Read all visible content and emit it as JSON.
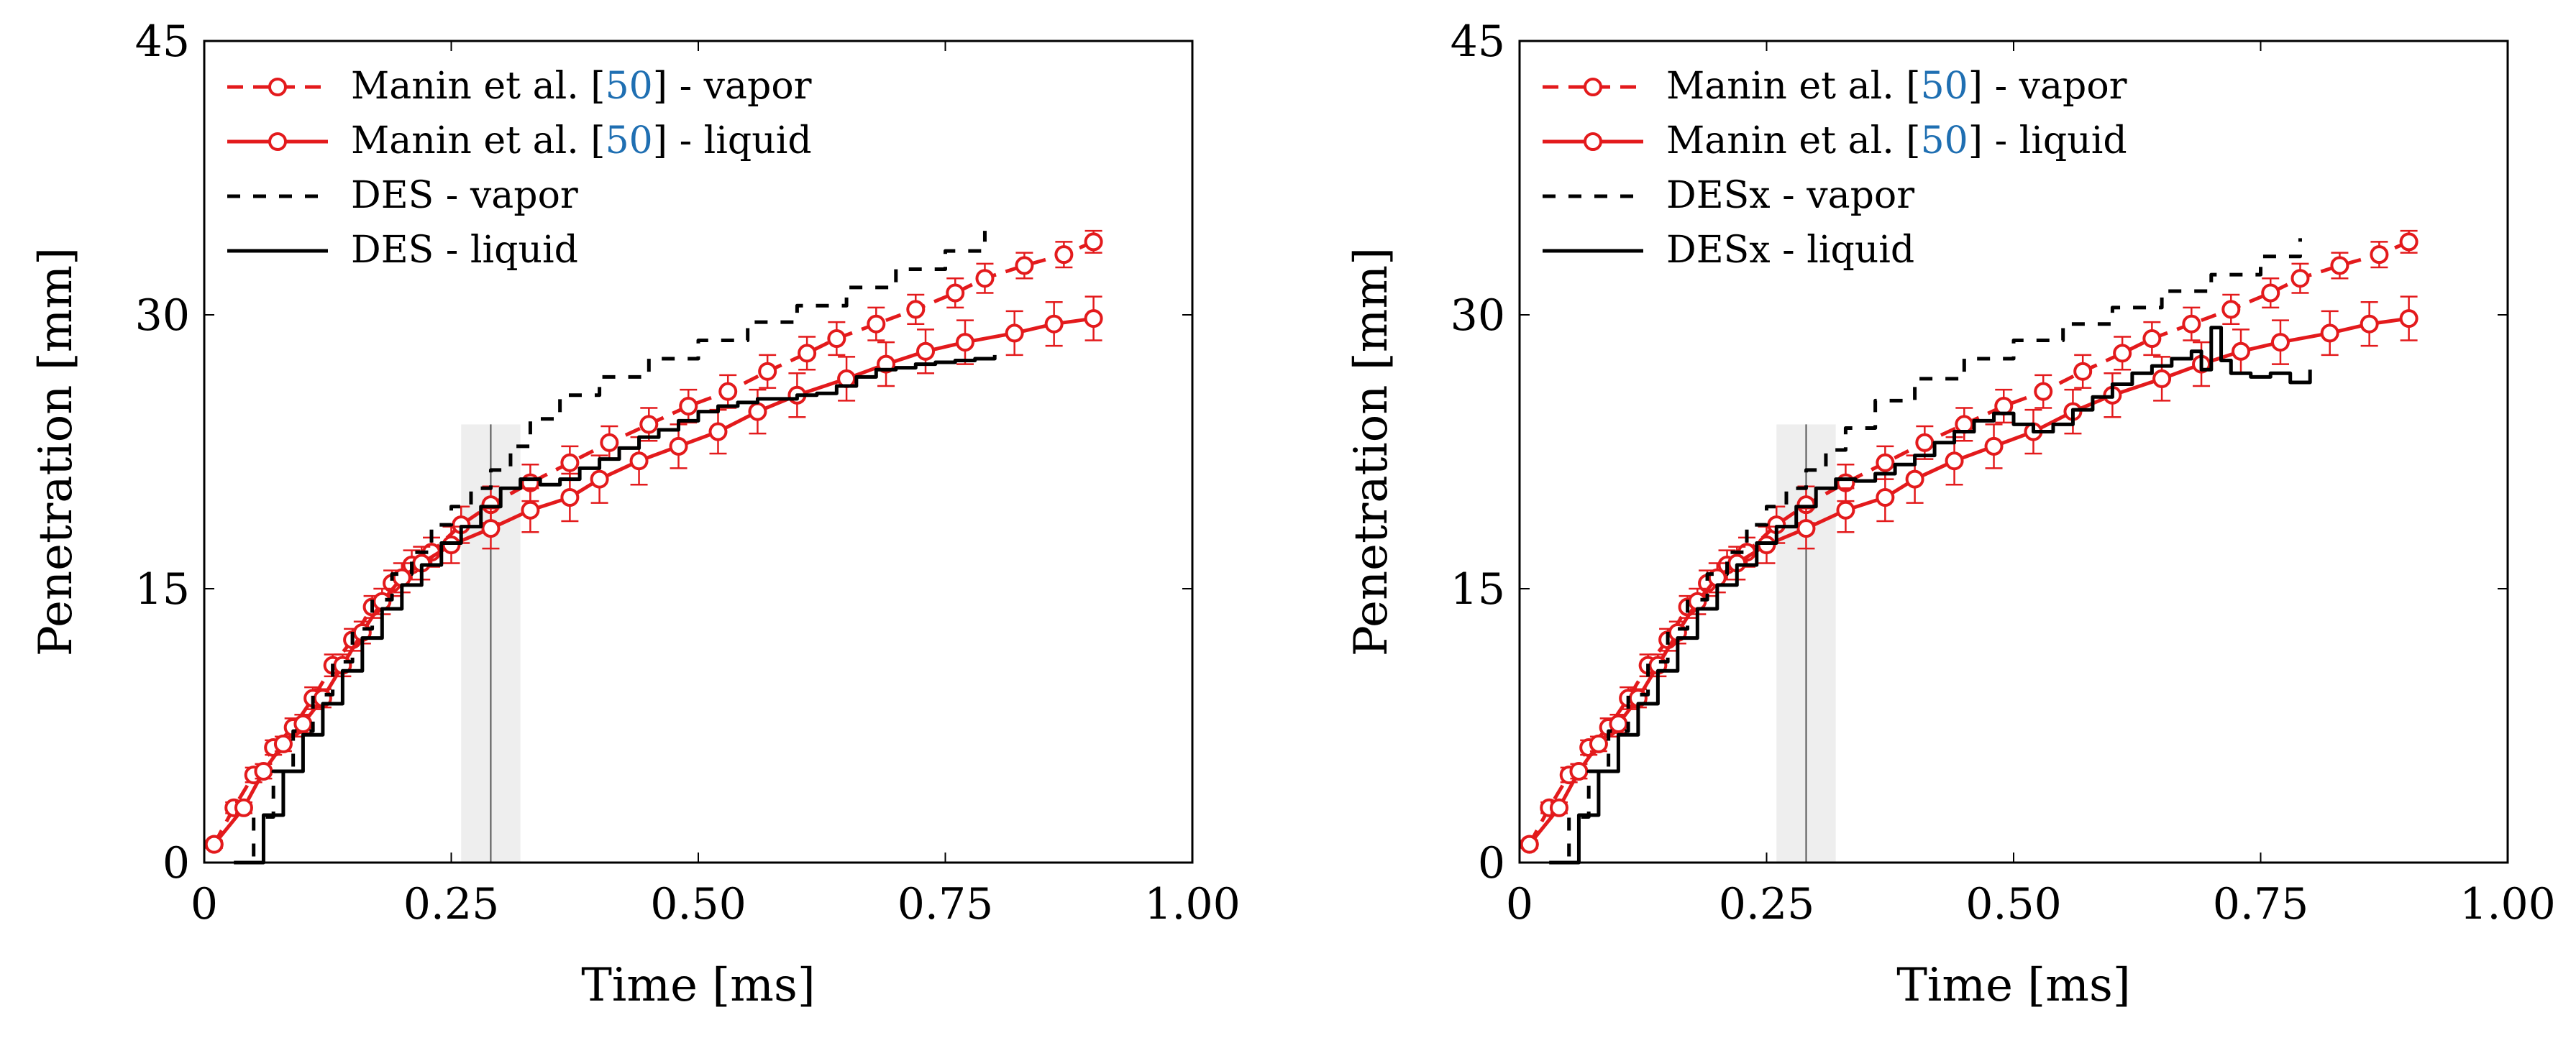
{
  "chart_data": [
    {
      "type": "line",
      "panel": "left",
      "xlabel": "Time [ms]",
      "ylabel": "Penetration [mm]",
      "xlim": [
        0,
        1.0
      ],
      "ylim": [
        0,
        45
      ],
      "xticks": [
        "0",
        "0.25",
        "0.50",
        "0.75",
        "1.00"
      ],
      "xtick_values": [
        0,
        0.25,
        0.5,
        0.75,
        1.0
      ],
      "yticks": [
        "0",
        "15",
        "30",
        "45"
      ],
      "ytick_values": [
        0,
        15,
        30,
        45
      ],
      "legend_position": "top-left",
      "shaded_band": {
        "x0": 0.26,
        "x1": 0.32,
        "y_top": 24,
        "line_x": 0.29
      },
      "series": [
        {
          "name": "Manin et al. [50] - vapor",
          "legend_prefix": "Manin et al. [",
          "legend_cite": "50",
          "legend_suffix": "] - vapor",
          "color": "#e31a1c",
          "dash": "dashed",
          "marker": "circle",
          "error_bars": true,
          "x": [
            0.01,
            0.03,
            0.05,
            0.07,
            0.09,
            0.11,
            0.13,
            0.15,
            0.17,
            0.19,
            0.21,
            0.23,
            0.26,
            0.29,
            0.33,
            0.37,
            0.41,
            0.45,
            0.49,
            0.53,
            0.57,
            0.61,
            0.64,
            0.68,
            0.72,
            0.76,
            0.79,
            0.83,
            0.87,
            0.9
          ],
          "y": [
            1.0,
            3.0,
            4.8,
            6.3,
            7.4,
            9.0,
            10.8,
            12.2,
            14.0,
            15.3,
            16.3,
            17.0,
            18.5,
            19.6,
            20.8,
            21.9,
            23.0,
            24.0,
            25.0,
            25.8,
            26.9,
            27.9,
            28.7,
            29.5,
            30.3,
            31.2,
            32.0,
            32.7,
            33.3,
            34.0
          ],
          "err": [
            0.2,
            0.3,
            0.4,
            0.4,
            0.5,
            0.6,
            0.6,
            0.6,
            0.6,
            0.7,
            0.8,
            0.8,
            1.0,
            1.0,
            1.0,
            0.9,
            0.9,
            0.9,
            0.9,
            0.9,
            0.9,
            0.9,
            0.9,
            0.9,
            0.8,
            0.8,
            0.8,
            0.7,
            0.7,
            0.6
          ]
        },
        {
          "name": "Manin et al. [50] - liquid",
          "legend_prefix": "Manin et al. [",
          "legend_cite": "50",
          "legend_suffix": "] - liquid",
          "color": "#e31a1c",
          "dash": "solid",
          "marker": "circle",
          "error_bars": true,
          "x": [
            0.01,
            0.04,
            0.06,
            0.08,
            0.1,
            0.12,
            0.14,
            0.16,
            0.18,
            0.2,
            0.22,
            0.25,
            0.29,
            0.33,
            0.37,
            0.4,
            0.44,
            0.48,
            0.52,
            0.56,
            0.6,
            0.65,
            0.69,
            0.73,
            0.77,
            0.82,
            0.86,
            0.9
          ],
          "y": [
            1.0,
            3.0,
            5.0,
            6.5,
            7.6,
            9.0,
            10.8,
            12.6,
            14.3,
            15.6,
            16.4,
            17.4,
            18.3,
            19.3,
            20.0,
            21.0,
            22.0,
            22.8,
            23.6,
            24.7,
            25.6,
            26.5,
            27.3,
            28.0,
            28.5,
            29.0,
            29.5,
            29.8
          ],
          "err": [
            0.2,
            0.3,
            0.4,
            0.4,
            0.5,
            0.5,
            0.6,
            0.6,
            0.7,
            0.8,
            0.9,
            1.0,
            1.1,
            1.2,
            1.3,
            1.3,
            1.3,
            1.2,
            1.2,
            1.2,
            1.2,
            1.2,
            1.2,
            1.2,
            1.2,
            1.2,
            1.2,
            1.2
          ]
        },
        {
          "name": "DES - vapor",
          "color": "#000000",
          "dash": "dashed",
          "marker": "none",
          "x": [
            0.03,
            0.05,
            0.07,
            0.09,
            0.11,
            0.13,
            0.15,
            0.17,
            0.19,
            0.21,
            0.23,
            0.25,
            0.27,
            0.29,
            0.31,
            0.33,
            0.36,
            0.4,
            0.45,
            0.5,
            0.55,
            0.6,
            0.65,
            0.7,
            0.75,
            0.79
          ],
          "y": [
            0,
            2.5,
            5.0,
            7.2,
            9.2,
            11.0,
            12.8,
            14.4,
            15.8,
            17.0,
            18.5,
            19.5,
            20.5,
            21.5,
            22.8,
            24.3,
            25.6,
            26.6,
            27.6,
            28.6,
            29.6,
            30.5,
            31.5,
            32.5,
            33.5,
            34.6
          ]
        },
        {
          "name": "DES - liquid",
          "color": "#000000",
          "dash": "solid",
          "marker": "none",
          "x": [
            0.04,
            0.06,
            0.08,
            0.1,
            0.12,
            0.14,
            0.16,
            0.18,
            0.2,
            0.22,
            0.24,
            0.26,
            0.28,
            0.3,
            0.32,
            0.34,
            0.36,
            0.38,
            0.4,
            0.42,
            0.44,
            0.46,
            0.48,
            0.5,
            0.52,
            0.54,
            0.56,
            0.58,
            0.6,
            0.62,
            0.64,
            0.66,
            0.68,
            0.7,
            0.72,
            0.74,
            0.76,
            0.78,
            0.8
          ],
          "y": [
            0,
            2.6,
            5.0,
            7.0,
            8.7,
            10.5,
            12.3,
            13.9,
            15.2,
            16.3,
            17.5,
            18.4,
            19.5,
            20.5,
            21.0,
            20.7,
            21.0,
            21.6,
            22.1,
            22.7,
            23.3,
            23.7,
            24.2,
            24.7,
            25.0,
            25.2,
            25.4,
            25.4,
            25.6,
            25.7,
            26.1,
            26.6,
            27.0,
            27.1,
            27.3,
            27.4,
            27.5,
            27.6,
            27.8
          ]
        }
      ]
    },
    {
      "type": "line",
      "panel": "right",
      "xlabel": "Time [ms]",
      "ylabel": "Penetration [mm]",
      "xlim": [
        0,
        1.0
      ],
      "ylim": [
        0,
        45
      ],
      "xticks": [
        "0",
        "0.25",
        "0.50",
        "0.75",
        "1.00"
      ],
      "xtick_values": [
        0,
        0.25,
        0.5,
        0.75,
        1.0
      ],
      "yticks": [
        "0",
        "15",
        "30",
        "45"
      ],
      "ytick_values": [
        0,
        15,
        30,
        45
      ],
      "legend_position": "top-left",
      "shaded_band": {
        "x0": 0.26,
        "x1": 0.32,
        "y_top": 24,
        "line_x": 0.29
      },
      "series": [
        {
          "name": "Manin et al. [50] - vapor",
          "legend_prefix": "Manin et al. [",
          "legend_cite": "50",
          "legend_suffix": "] - vapor",
          "color": "#e31a1c",
          "dash": "dashed",
          "marker": "circle",
          "error_bars": true,
          "x": [
            0.01,
            0.03,
            0.05,
            0.07,
            0.09,
            0.11,
            0.13,
            0.15,
            0.17,
            0.19,
            0.21,
            0.23,
            0.26,
            0.29,
            0.33,
            0.37,
            0.41,
            0.45,
            0.49,
            0.53,
            0.57,
            0.61,
            0.64,
            0.68,
            0.72,
            0.76,
            0.79,
            0.83,
            0.87,
            0.9
          ],
          "y": [
            1.0,
            3.0,
            4.8,
            6.3,
            7.4,
            9.0,
            10.8,
            12.2,
            14.0,
            15.3,
            16.3,
            17.0,
            18.5,
            19.6,
            20.8,
            21.9,
            23.0,
            24.0,
            25.0,
            25.8,
            26.9,
            27.9,
            28.7,
            29.5,
            30.3,
            31.2,
            32.0,
            32.7,
            33.3,
            34.0
          ],
          "err": [
            0.2,
            0.3,
            0.4,
            0.4,
            0.5,
            0.6,
            0.6,
            0.6,
            0.6,
            0.7,
            0.8,
            0.8,
            1.0,
            1.0,
            1.0,
            0.9,
            0.9,
            0.9,
            0.9,
            0.9,
            0.9,
            0.9,
            0.9,
            0.9,
            0.8,
            0.8,
            0.8,
            0.7,
            0.7,
            0.6
          ]
        },
        {
          "name": "Manin et al. [50] - liquid",
          "legend_prefix": "Manin et al. [",
          "legend_cite": "50",
          "legend_suffix": "] - liquid",
          "color": "#e31a1c",
          "dash": "solid",
          "marker": "circle",
          "error_bars": true,
          "x": [
            0.01,
            0.04,
            0.06,
            0.08,
            0.1,
            0.12,
            0.14,
            0.16,
            0.18,
            0.2,
            0.22,
            0.25,
            0.29,
            0.33,
            0.37,
            0.4,
            0.44,
            0.48,
            0.52,
            0.56,
            0.6,
            0.65,
            0.69,
            0.73,
            0.77,
            0.82,
            0.86,
            0.9
          ],
          "y": [
            1.0,
            3.0,
            5.0,
            6.5,
            7.6,
            9.0,
            10.8,
            12.6,
            14.3,
            15.6,
            16.4,
            17.4,
            18.3,
            19.3,
            20.0,
            21.0,
            22.0,
            22.8,
            23.6,
            24.7,
            25.6,
            26.5,
            27.3,
            28.0,
            28.5,
            29.0,
            29.5,
            29.8
          ],
          "err": [
            0.2,
            0.3,
            0.4,
            0.4,
            0.5,
            0.5,
            0.6,
            0.6,
            0.7,
            0.8,
            0.9,
            1.0,
            1.1,
            1.2,
            1.3,
            1.3,
            1.3,
            1.2,
            1.2,
            1.2,
            1.2,
            1.2,
            1.2,
            1.2,
            1.2,
            1.2,
            1.2,
            1.2
          ]
        },
        {
          "name": "DESx - vapor",
          "color": "#000000",
          "dash": "dashed",
          "marker": "none",
          "x": [
            0.03,
            0.05,
            0.07,
            0.09,
            0.11,
            0.13,
            0.15,
            0.17,
            0.19,
            0.21,
            0.23,
            0.25,
            0.27,
            0.29,
            0.31,
            0.33,
            0.36,
            0.4,
            0.45,
            0.5,
            0.55,
            0.6,
            0.65,
            0.7,
            0.75,
            0.79
          ],
          "y": [
            0,
            2.5,
            5.0,
            7.2,
            9.2,
            11.0,
            12.8,
            14.4,
            15.8,
            17.0,
            18.5,
            19.5,
            20.5,
            21.5,
            22.6,
            23.8,
            25.3,
            26.5,
            27.6,
            28.6,
            29.5,
            30.4,
            31.3,
            32.2,
            33.2,
            34.2
          ]
        },
        {
          "name": "DESx - liquid",
          "color": "#000000",
          "dash": "solid",
          "marker": "none",
          "x": [
            0.04,
            0.06,
            0.08,
            0.1,
            0.12,
            0.14,
            0.16,
            0.18,
            0.2,
            0.22,
            0.24,
            0.26,
            0.28,
            0.3,
            0.32,
            0.34,
            0.36,
            0.38,
            0.4,
            0.42,
            0.44,
            0.46,
            0.48,
            0.5,
            0.52,
            0.54,
            0.56,
            0.58,
            0.6,
            0.62,
            0.64,
            0.66,
            0.68,
            0.69,
            0.7,
            0.71,
            0.72,
            0.74,
            0.76,
            0.78,
            0.8
          ],
          "y": [
            0,
            2.6,
            5.0,
            7.0,
            8.7,
            10.5,
            12.3,
            13.9,
            15.2,
            16.3,
            17.5,
            18.4,
            19.5,
            20.5,
            21.0,
            20.9,
            21.3,
            21.8,
            22.3,
            23.0,
            23.6,
            24.2,
            24.6,
            24.0,
            23.6,
            24.0,
            24.8,
            25.5,
            26.2,
            26.8,
            27.2,
            27.6,
            28.0,
            27.0,
            29.3,
            27.5,
            26.8,
            26.6,
            26.8,
            26.3,
            27.0
          ]
        }
      ]
    }
  ]
}
